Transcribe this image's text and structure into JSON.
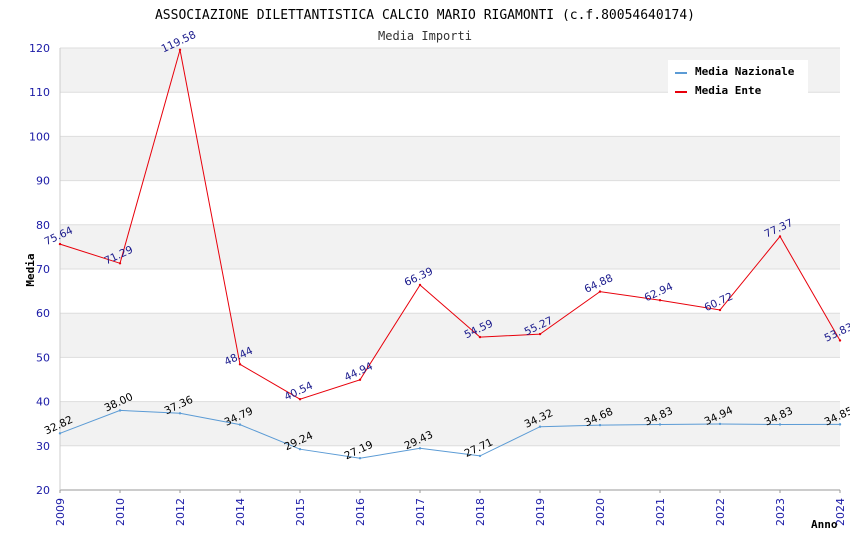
{
  "chart_data": {
    "type": "line",
    "title": "ASSOCIAZIONE DILETTANTISTICA CALCIO MARIO RIGAMONTI (c.f.80054640174)",
    "subtitle": "Media Importi",
    "xlabel": "Anno",
    "ylabel": "Media",
    "ylim": [
      20,
      120
    ],
    "yticks": [
      "20",
      "30",
      "40",
      "50",
      "60",
      "70",
      "80",
      "90",
      "100",
      "110",
      "120"
    ],
    "categories": [
      "2009",
      "2010",
      "2012",
      "2014",
      "2015",
      "2016",
      "2017",
      "2018",
      "2019",
      "2020",
      "2021",
      "2022",
      "2023",
      "2024"
    ],
    "series": [
      {
        "name": "Media Nazionale",
        "color": "#5b9bd5",
        "values": [
          32.82,
          38.0,
          37.36,
          34.79,
          29.24,
          27.19,
          29.43,
          27.71,
          34.32,
          34.68,
          34.83,
          34.94,
          34.83,
          34.85
        ],
        "labels": [
          "32.82",
          "38.00",
          "37.36",
          "34.79",
          "29.24",
          "27.19",
          "29.43",
          "27.71",
          "34.32",
          "34.68",
          "34.83",
          "34.94",
          "34.83",
          "34.85"
        ]
      },
      {
        "name": "Media Ente",
        "color": "#e8000b",
        "values": [
          75.64,
          71.29,
          119.58,
          48.44,
          40.54,
          44.94,
          66.39,
          54.59,
          55.27,
          64.88,
          62.94,
          60.72,
          77.37,
          53.83
        ],
        "labels": [
          "75.64",
          "71.29",
          "119.58",
          "48.44",
          "40.54",
          "44.94",
          "66.39",
          "54.59",
          "55.27",
          "64.88",
          "62.94",
          "60.72",
          "77.37",
          "53.83"
        ]
      }
    ],
    "grid": true,
    "legend": "top-right"
  }
}
